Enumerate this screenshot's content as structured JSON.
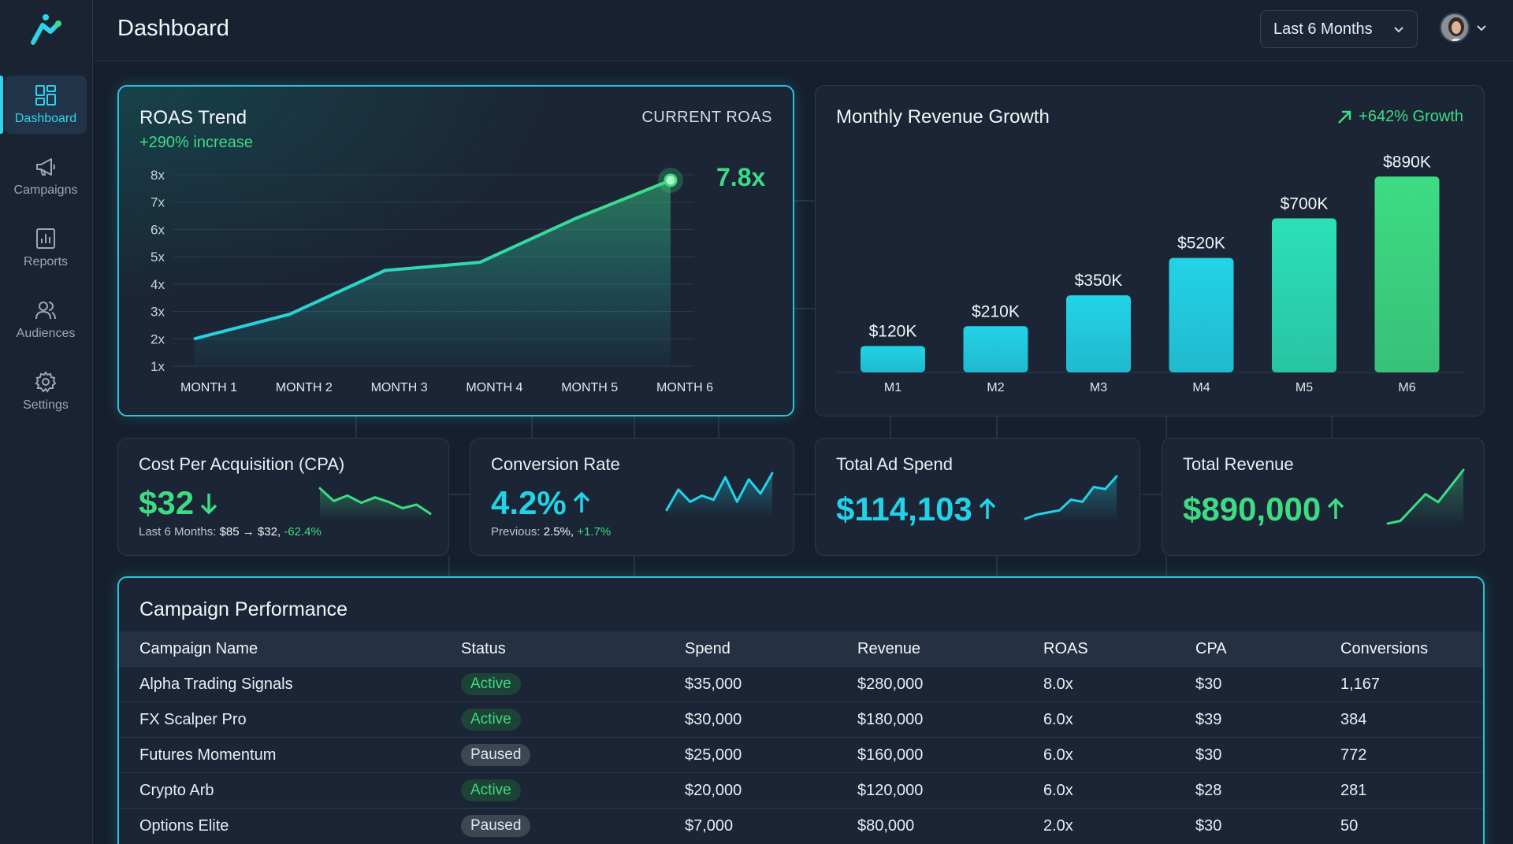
{
  "header": {
    "title": "Dashboard",
    "range_select": "Last 6 Months"
  },
  "sidebar": {
    "items": [
      {
        "label": "Dashboard",
        "icon": "dashboard-icon",
        "active": true
      },
      {
        "label": "Campaigns",
        "icon": "megaphone-icon",
        "active": false
      },
      {
        "label": "Reports",
        "icon": "bar-chart-icon",
        "active": false
      },
      {
        "label": "Audiences",
        "icon": "users-icon",
        "active": false
      },
      {
        "label": "Settings",
        "icon": "gear-icon",
        "active": false
      }
    ]
  },
  "colors": {
    "accent_cyan": "#22d3e8",
    "accent_green": "#3ddc84",
    "background": "#161f2d",
    "card": "#1b2535"
  },
  "roas_card": {
    "title": "ROAS Trend",
    "subtitle": "+290% increase",
    "current_label": "CURRENT ROAS",
    "current_value": "7.8x"
  },
  "revenue_card": {
    "title": "Monthly Revenue Growth",
    "growth_label": "+642% Growth"
  },
  "chart_data": [
    {
      "type": "area",
      "title": "ROAS Trend",
      "categories": [
        "MONTH 1",
        "MONTH 2",
        "MONTH 3",
        "MONTH 4",
        "MONTH 5",
        "MONTH 6"
      ],
      "values": [
        2.0,
        2.9,
        4.5,
        4.8,
        6.4,
        7.8
      ],
      "y_ticks": [
        "8x",
        "7x",
        "6x",
        "5x",
        "4x",
        "3x",
        "2x",
        "1x"
      ],
      "ylim": [
        1,
        8
      ],
      "grid": true
    },
    {
      "type": "bar",
      "title": "Monthly Revenue Growth",
      "categories": [
        "M1",
        "M2",
        "M3",
        "M4",
        "M5",
        "M6"
      ],
      "values": [
        120,
        210,
        350,
        520,
        700,
        890
      ],
      "labels": [
        "$120K",
        "$210K",
        "$350K",
        "$520K",
        "$700K",
        "$890K"
      ],
      "ylim": [
        0,
        1000
      ]
    }
  ],
  "kpis": {
    "cpa": {
      "label": "Cost Per Acquisition (CPA)",
      "value": "$32",
      "sub_prefix": "Last 6 Months: ",
      "sub_value": "$85 → $32, ",
      "sub_change": "-62.4%",
      "spark": [
        0.8,
        0.45,
        0.6,
        0.4,
        0.55,
        0.42,
        0.25,
        0.35,
        0.1
      ]
    },
    "conversion": {
      "label": "Conversion Rate",
      "value": "4.2%",
      "sub_prefix": "Previous: ",
      "sub_value": "2.5%, ",
      "sub_change": "+1.7%",
      "spark": [
        0.1,
        0.6,
        0.3,
        0.45,
        0.35,
        0.9,
        0.3,
        0.85,
        0.5,
        1.0
      ]
    },
    "ad_spend": {
      "label": "Total Ad Spend",
      "value": "$114,103",
      "spark": [
        0.0,
        0.1,
        0.15,
        0.2,
        0.45,
        0.4,
        0.75,
        0.7,
        1.0
      ]
    },
    "revenue": {
      "label": "Total Revenue",
      "value": "$890,000",
      "spark": [
        0.0,
        0.05,
        0.3,
        0.55,
        0.4,
        0.7,
        1.0
      ]
    }
  },
  "table": {
    "title": "Campaign Performance",
    "headers": [
      "Campaign Name",
      "Status",
      "Spend",
      "Revenue",
      "ROAS",
      "CPA",
      "Conversions"
    ],
    "rows": [
      [
        "Alpha Trading Signals",
        "Active",
        "$35,000",
        "$280,000",
        "8.0x",
        "$30",
        "1,167"
      ],
      [
        "FX Scalper Pro",
        "Active",
        "$30,000",
        "$180,000",
        "6.0x",
        "$39",
        "384"
      ],
      [
        "Futures Momentum",
        "Paused",
        "$25,000",
        "$160,000",
        "6.0x",
        "$30",
        "772"
      ],
      [
        "Crypto Arb",
        "Active",
        "$20,000",
        "$120,000",
        "6.0x",
        "$28",
        "281"
      ],
      [
        "Options Elite",
        "Paused",
        "$7,000",
        "$80,000",
        "2.0x",
        "$30",
        "50"
      ]
    ]
  }
}
